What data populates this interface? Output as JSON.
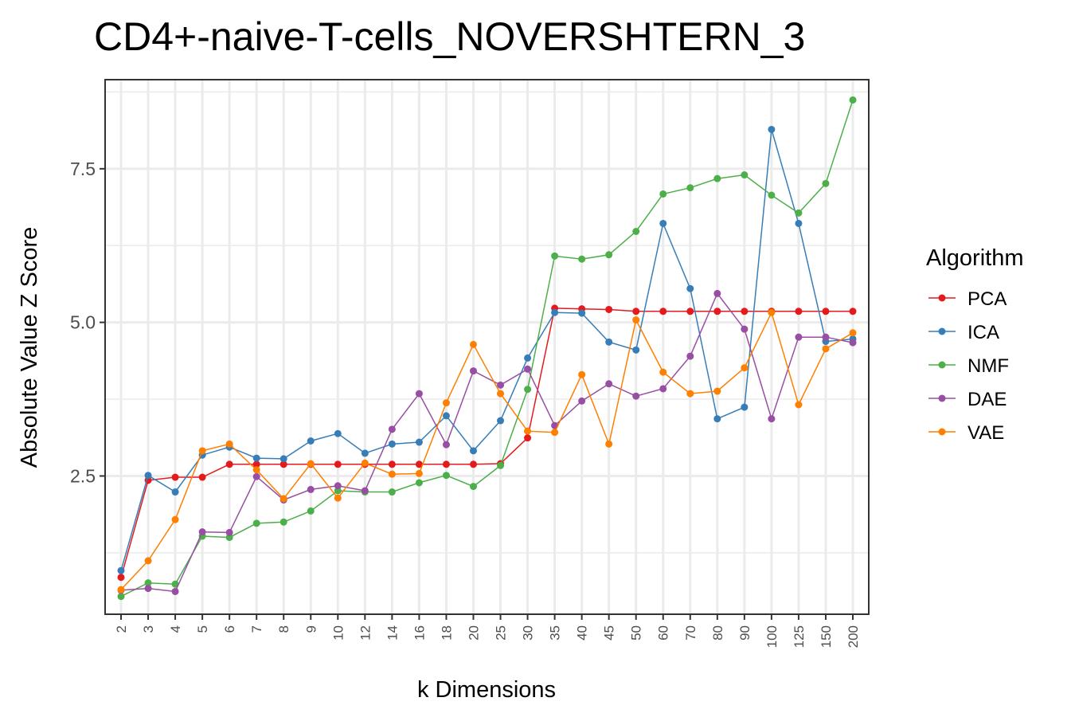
{
  "chart_data": {
    "type": "line",
    "title": "CD4+-naive-T-cells_NOVERSHTERN_3",
    "xlabel": "k Dimensions",
    "ylabel": "Absolute Value Z Score",
    "categories": [
      "2",
      "3",
      "4",
      "5",
      "6",
      "7",
      "8",
      "9",
      "10",
      "12",
      "14",
      "16",
      "18",
      "20",
      "25",
      "30",
      "35",
      "40",
      "45",
      "50",
      "60",
      "70",
      "80",
      "90",
      "100",
      "125",
      "150",
      "200"
    ],
    "ylim": [
      0.25,
      8.95
    ],
    "yticks": [
      2.5,
      5.0,
      7.5
    ],
    "ytick_labels": [
      "2.5",
      "5.0",
      "7.5"
    ],
    "grid": true,
    "legend": {
      "title": "Algorithm",
      "position": "right"
    },
    "series": [
      {
        "name": "PCA",
        "color": "#e41a1c",
        "values": [
          0.85,
          2.43,
          2.48,
          2.48,
          2.69,
          2.69,
          2.69,
          2.69,
          2.69,
          2.69,
          2.69,
          2.69,
          2.69,
          2.69,
          2.7,
          3.12,
          5.23,
          5.22,
          5.21,
          5.18,
          5.18,
          5.18,
          5.18,
          5.18,
          5.18,
          5.18,
          5.18,
          5.18
        ]
      },
      {
        "name": "ICA",
        "color": "#377eb8",
        "values": [
          0.96,
          2.51,
          2.24,
          2.84,
          2.97,
          2.79,
          2.78,
          3.07,
          3.19,
          2.87,
          3.02,
          3.05,
          3.48,
          2.91,
          3.4,
          4.42,
          5.16,
          5.15,
          4.68,
          4.55,
          6.61,
          5.55,
          3.43,
          3.62,
          8.14,
          6.61,
          4.69,
          4.73
        ]
      },
      {
        "name": "NMF",
        "color": "#4daf4a",
        "values": [
          0.54,
          0.76,
          0.74,
          1.52,
          1.5,
          1.73,
          1.75,
          1.93,
          2.26,
          2.24,
          2.24,
          2.39,
          2.51,
          2.33,
          2.67,
          3.91,
          6.08,
          6.03,
          6.1,
          6.48,
          7.09,
          7.19,
          7.34,
          7.4,
          7.07,
          6.78,
          7.26,
          8.62
        ]
      },
      {
        "name": "DAE",
        "color": "#984ea3",
        "values": [
          0.64,
          0.67,
          0.62,
          1.59,
          1.58,
          2.49,
          2.11,
          2.28,
          2.34,
          2.26,
          3.26,
          3.84,
          3.01,
          4.21,
          3.98,
          4.24,
          3.32,
          3.72,
          4.0,
          3.8,
          3.92,
          4.45,
          5.47,
          4.89,
          3.43,
          4.76,
          4.76,
          4.67
        ]
      },
      {
        "name": "VAE",
        "color": "#ff7f00",
        "values": [
          0.65,
          1.12,
          1.79,
          2.91,
          3.02,
          2.6,
          2.13,
          2.7,
          2.14,
          2.71,
          2.53,
          2.54,
          3.69,
          4.64,
          3.84,
          3.23,
          3.21,
          4.15,
          3.02,
          5.04,
          4.19,
          3.84,
          3.88,
          4.26,
          5.16,
          3.66,
          4.57,
          4.83
        ]
      }
    ]
  }
}
